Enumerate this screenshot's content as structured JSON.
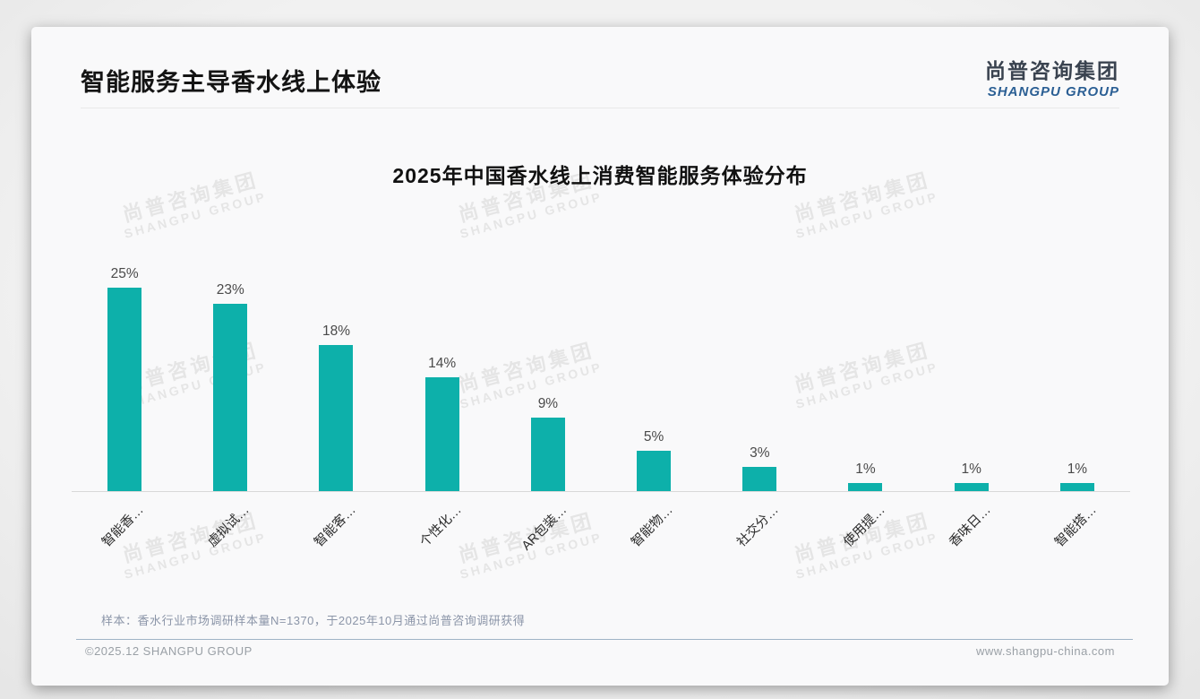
{
  "header": {
    "title": "智能服务主导香水线上体验"
  },
  "logo": {
    "cn": "尚普咨询集团",
    "en": "SHANGPU GROUP"
  },
  "watermark": {
    "line1": "尚普咨询集团",
    "line2": "SHANGPU GROUP"
  },
  "chart_data": {
    "type": "bar",
    "title": "2025年中国香水线上消费智能服务体验分布",
    "categories": [
      "智能香…",
      "虚拟试…",
      "智能客…",
      "个性化…",
      "AR包装…",
      "智能物…",
      "社交分…",
      "使用提…",
      "香味日…",
      "智能搭…"
    ],
    "values": [
      25,
      23,
      18,
      14,
      9,
      5,
      3,
      1,
      1,
      1
    ],
    "value_labels": [
      "25%",
      "23%",
      "18%",
      "14%",
      "9%",
      "5%",
      "3%",
      "1%",
      "1%",
      "1%"
    ],
    "unit": "%",
    "ylim": [
      0,
      27
    ],
    "grid": false,
    "legend": false,
    "tick_rotation_deg": 45,
    "bar_color": "#0db0aa",
    "axis_line_color": "#d9d9d9"
  },
  "footnote": "样本：香水行业市场调研样本量N=1370，于2025年10月通过尚普咨询调研获得",
  "footer": {
    "copyright": "©2025.12 SHANGPU GROUP",
    "website": "www.shangpu-china.com"
  }
}
